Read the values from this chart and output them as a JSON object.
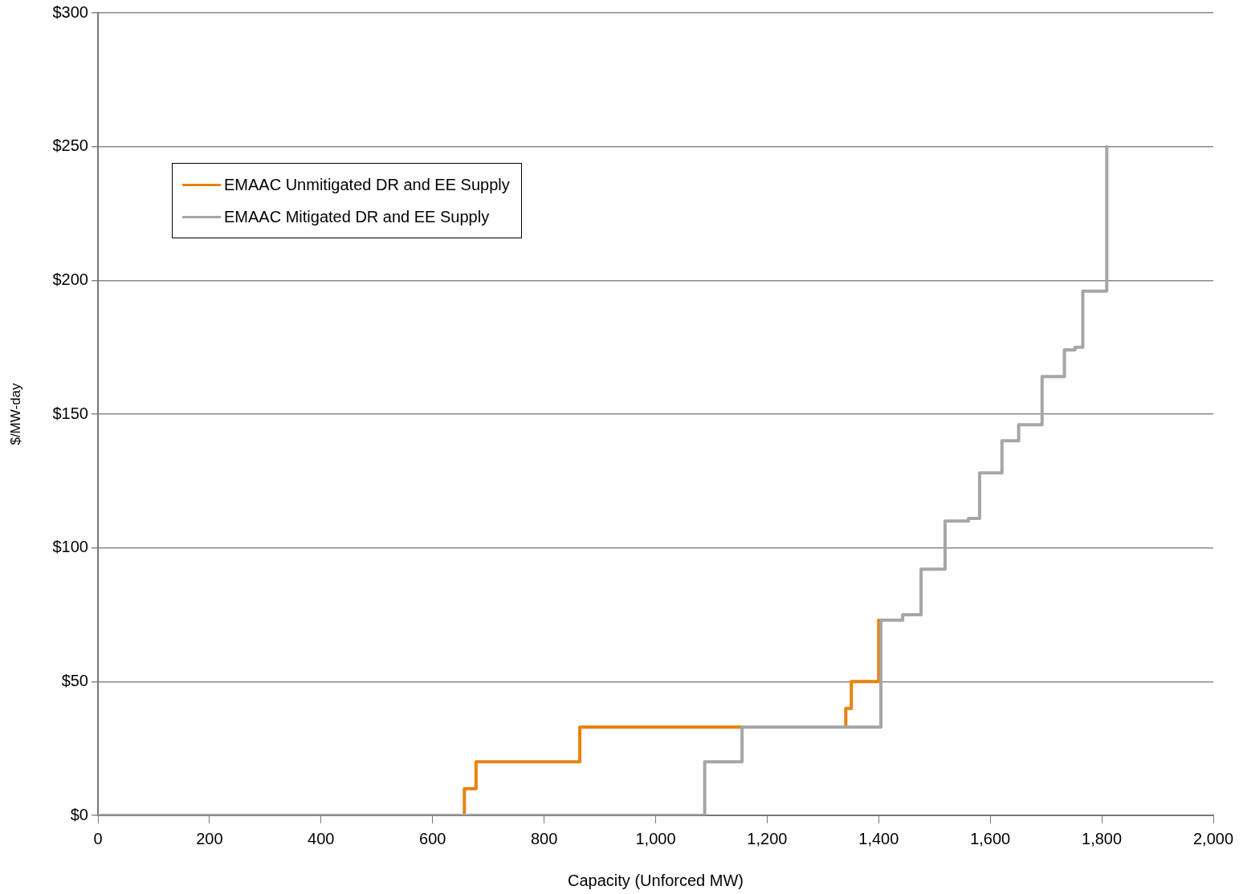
{
  "chart_data": {
    "type": "step",
    "xlabel": "Capacity (Unforced MW)",
    "ylabel": "$/MW-day",
    "xlim": [
      0,
      2000
    ],
    "xticks": [
      0,
      200,
      400,
      600,
      800,
      {
        "value": 1000,
        "label": "1,000"
      },
      {
        "value": 1200,
        "label": "1,200"
      },
      {
        "value": 1400,
        "label": "1,400"
      },
      {
        "value": 1600,
        "label": "1,600"
      },
      {
        "value": 1800,
        "label": "1,800"
      },
      {
        "value": 2000,
        "label": "2,000"
      }
    ],
    "ylim": [
      0,
      300
    ],
    "yticks": [
      {
        "value": 0,
        "label": "$0"
      },
      {
        "value": 50,
        "label": "$50"
      },
      {
        "value": 100,
        "label": "$100"
      },
      {
        "value": 150,
        "label": "$150"
      },
      {
        "value": 200,
        "label": "$200"
      },
      {
        "value": 250,
        "label": "$250"
      },
      {
        "value": 300,
        "label": "$300"
      }
    ],
    "grid": "y",
    "legend": "top left",
    "marker": "none",
    "line_style": "solid",
    "series": [
      {
        "name": "EMAAC Unmitigated DR and EE Supply",
        "color": "#e8820e",
        "x": [
          657,
          657,
          678,
          864,
          1341,
          1351,
          1400
        ],
        "values": [
          0,
          10,
          20,
          33,
          40,
          50,
          73
        ]
      },
      {
        "name": "EMAAC Mitigated DR and EE Supply",
        "color": "#a6a6a6",
        "x": [
          0,
          1088,
          1155,
          1404,
          1443,
          1476,
          1519,
          1561,
          1581,
          1621,
          1651,
          1693,
          1733,
          1752,
          1766,
          1809
        ],
        "values": [
          0,
          20,
          33,
          73,
          75,
          92,
          110,
          111,
          128,
          140,
          146,
          164,
          174,
          175,
          196,
          250
        ]
      }
    ]
  }
}
